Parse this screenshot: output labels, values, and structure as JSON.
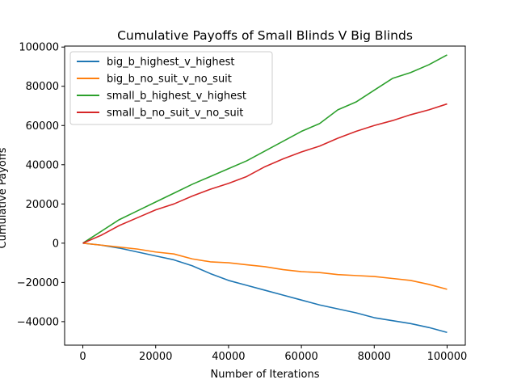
{
  "chart_data": {
    "type": "line",
    "title": "Cumulative Payoffs of Small Blinds V Big Blinds",
    "xlabel": "Number of Iterations",
    "ylabel": "Cumulative Payoffs",
    "xlim": [
      -5000,
      105000
    ],
    "ylim": [
      -52000,
      100500
    ],
    "xticks": [
      0,
      20000,
      40000,
      60000,
      80000,
      100000
    ],
    "yticks": [
      -40000,
      -20000,
      0,
      20000,
      40000,
      60000,
      80000,
      100000
    ],
    "xtick_labels": [
      "0",
      "20000",
      "40000",
      "60000",
      "80000",
      "100000"
    ],
    "ytick_labels": [
      "−40000",
      "−20000",
      "0",
      "20000",
      "40000",
      "60000",
      "80000",
      "100000"
    ],
    "grid": false,
    "legend_position": "upper-left",
    "x": [
      0,
      5000,
      10000,
      15000,
      20000,
      25000,
      30000,
      35000,
      40000,
      45000,
      50000,
      55000,
      60000,
      65000,
      70000,
      75000,
      80000,
      85000,
      90000,
      95000,
      100000
    ],
    "series": [
      {
        "name": "big_b_highest_v_highest",
        "color": "#1f77b4",
        "values": [
          0,
          -1000,
          -2500,
          -4500,
          -6500,
          -8500,
          -11500,
          -15500,
          -19000,
          -21500,
          -24000,
          -26500,
          -29000,
          -31500,
          -33500,
          -35500,
          -38000,
          -39500,
          -41000,
          -43000,
          -45500
        ]
      },
      {
        "name": "big_b_no_suit_v_no_suit",
        "color": "#ff7f0e",
        "values": [
          0,
          -1000,
          -2000,
          -3000,
          -4500,
          -5500,
          -8000,
          -9500,
          -10000,
          -11000,
          -12000,
          -13500,
          -14500,
          -15000,
          -16000,
          -16500,
          -17000,
          -18000,
          -19000,
          -21000,
          -23500
        ]
      },
      {
        "name": "small_b_highest_v_highest",
        "color": "#2ca02c",
        "values": [
          0,
          6000,
          12000,
          16500,
          21000,
          25500,
          30000,
          34000,
          38000,
          42000,
          47000,
          52000,
          57000,
          61000,
          68000,
          72000,
          78000,
          84000,
          87000,
          91000,
          96000
        ]
      },
      {
        "name": "small_b_no_suit_v_no_suit",
        "color": "#d62728",
        "values": [
          0,
          4000,
          9000,
          13000,
          17000,
          20000,
          24000,
          27500,
          30500,
          34000,
          39000,
          43000,
          46500,
          49500,
          53500,
          57000,
          60000,
          62500,
          65500,
          68000,
          71000
        ]
      }
    ]
  }
}
